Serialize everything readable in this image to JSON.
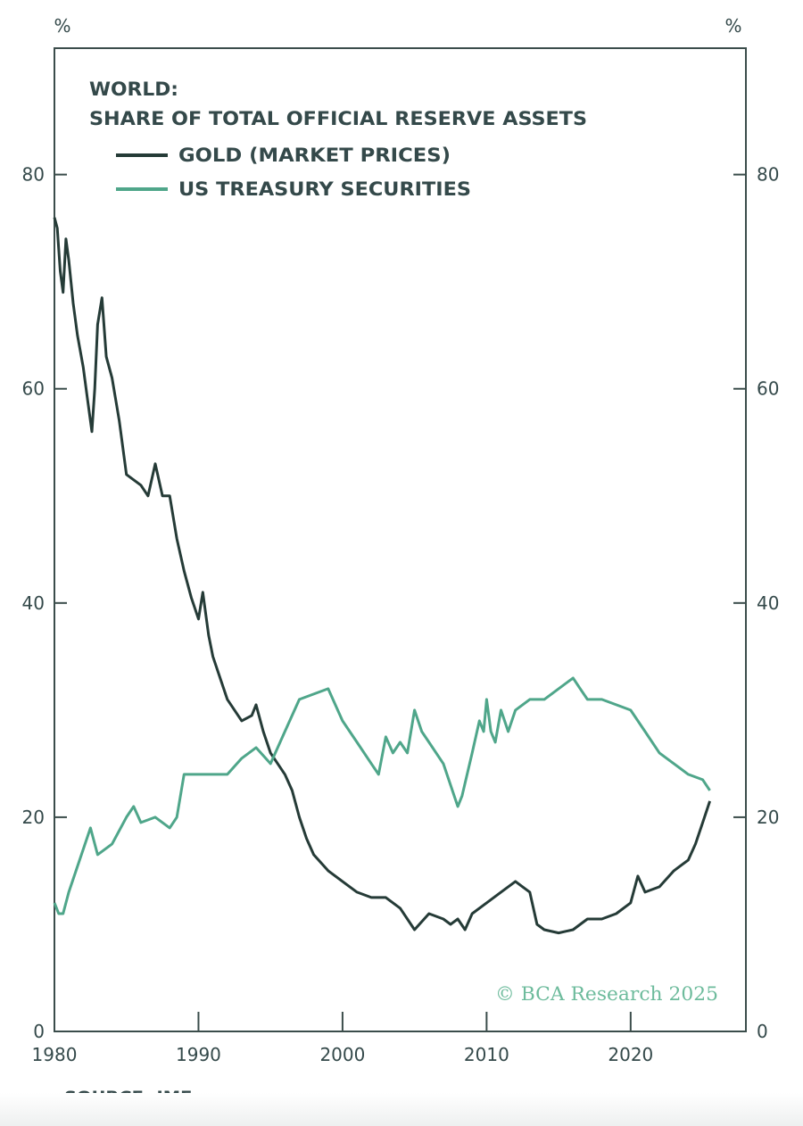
{
  "chart_data": {
    "type": "line",
    "title": "WORLD:",
    "subtitle": "SHARE OF TOTAL OFFICIAL RESERVE ASSETS",
    "ylabel_left": "%",
    "ylabel_right": "%",
    "xlabel": "",
    "xlim": [
      1980,
      2028
    ],
    "ylim": [
      0,
      91.8
    ],
    "x_ticks": [
      1980,
      1990,
      2000,
      2010,
      2020
    ],
    "x_tick_labels": [
      "1980",
      "1990",
      "2000",
      "2010",
      "2020"
    ],
    "y_ticks": [
      0,
      20,
      40,
      60,
      80
    ],
    "y_tick_labels": [
      "0",
      "20",
      "40",
      "60",
      "80"
    ],
    "grid": false,
    "legend_position": "top-left",
    "source": "SOURCE: IMF.",
    "watermark": "© BCA Research 2025",
    "colors": {
      "gold": "#253b37",
      "treasury": "#4fa68a",
      "axis": "#3b4d4b",
      "watermark": "#6dbb9c"
    },
    "series": [
      {
        "name": "GOLD (MARKET PRICES)",
        "color": "#253b37",
        "x": [
          1980,
          1980.2,
          1980.4,
          1980.6,
          1980.8,
          1981,
          1981.3,
          1981.6,
          1982,
          1982.3,
          1982.6,
          1982.8,
          1983,
          1983.3,
          1983.6,
          1984,
          1984.5,
          1985,
          1985.5,
          1986,
          1986.5,
          1987,
          1987.5,
          1988,
          1988.5,
          1989,
          1989.5,
          1990,
          1990.3,
          1990.7,
          1991,
          1991.5,
          1992,
          1993,
          1993.7,
          1994,
          1994.5,
          1995,
          1996,
          1996.5,
          1997,
          1997.5,
          1998,
          1999,
          2000,
          2001,
          2002,
          2003,
          2004,
          2005,
          2006,
          2007,
          2007.5,
          2008,
          2008.5,
          2009,
          2010,
          2011,
          2012,
          2012.5,
          2013,
          2013.5,
          2014,
          2015,
          2016,
          2016.5,
          2017,
          2018,
          2019,
          2020,
          2020.5,
          2021,
          2022,
          2023,
          2024,
          2024.5,
          2025,
          2025.5
        ],
        "y": [
          76,
          75,
          71,
          69,
          74,
          72,
          68,
          65,
          62,
          59,
          56,
          60,
          66,
          68.5,
          63,
          61,
          57,
          52,
          51.5,
          51,
          50,
          53,
          50,
          50,
          46,
          43,
          40.5,
          38.5,
          41,
          37,
          35,
          33,
          31,
          29,
          29.5,
          30.5,
          28,
          26,
          24,
          22.5,
          20,
          18,
          16.5,
          15,
          14,
          13,
          12.5,
          12.5,
          11.5,
          9.5,
          11,
          10.5,
          10,
          10.5,
          9.5,
          11,
          12,
          13,
          14,
          13.5,
          13,
          10,
          9.5,
          9.2,
          9.5,
          10,
          10.5,
          10.5,
          11,
          12,
          14.5,
          13,
          13.5,
          15,
          16,
          17.5,
          19.5,
          21.5
        ]
      },
      {
        "name": "US TREASURY SECURITIES",
        "color": "#4fa68a",
        "x": [
          1980,
          1980.3,
          1980.6,
          1981,
          1981.5,
          1982,
          1982.5,
          1983,
          1984,
          1985,
          1985.5,
          1986,
          1987,
          1988,
          1988.5,
          1989,
          1990,
          1991,
          1992,
          1993,
          1994,
          1995,
          1996,
          1997,
          1998,
          1999,
          2000,
          2001,
          2002,
          2002.5,
          2003,
          2003.5,
          2004,
          2004.5,
          2005,
          2005.5,
          2006,
          2007,
          2007.5,
          2008,
          2008.3,
          2009,
          2009.5,
          2009.8,
          2010,
          2010.3,
          2010.6,
          2011,
          2011.5,
          2012,
          2013,
          2014,
          2015,
          2016,
          2016.5,
          2017,
          2018,
          2019,
          2020,
          2021,
          2022,
          2023,
          2024,
          2025,
          2025.5
        ],
        "y": [
          12,
          11,
          11,
          13,
          15,
          17,
          19,
          16.5,
          17.5,
          20,
          21,
          19.5,
          20,
          19,
          20,
          24,
          24,
          24,
          24,
          25.5,
          26.5,
          25,
          28,
          31,
          31.5,
          32,
          29,
          27,
          25,
          24,
          27.5,
          26,
          27,
          26,
          30,
          28,
          27,
          25,
          23,
          21,
          22,
          26,
          29,
          28,
          31,
          28,
          27,
          30,
          28,
          30,
          31,
          31,
          32,
          33,
          32,
          31,
          31,
          30.5,
          30,
          28,
          26,
          25,
          24,
          23.5,
          22.5
        ]
      }
    ]
  }
}
